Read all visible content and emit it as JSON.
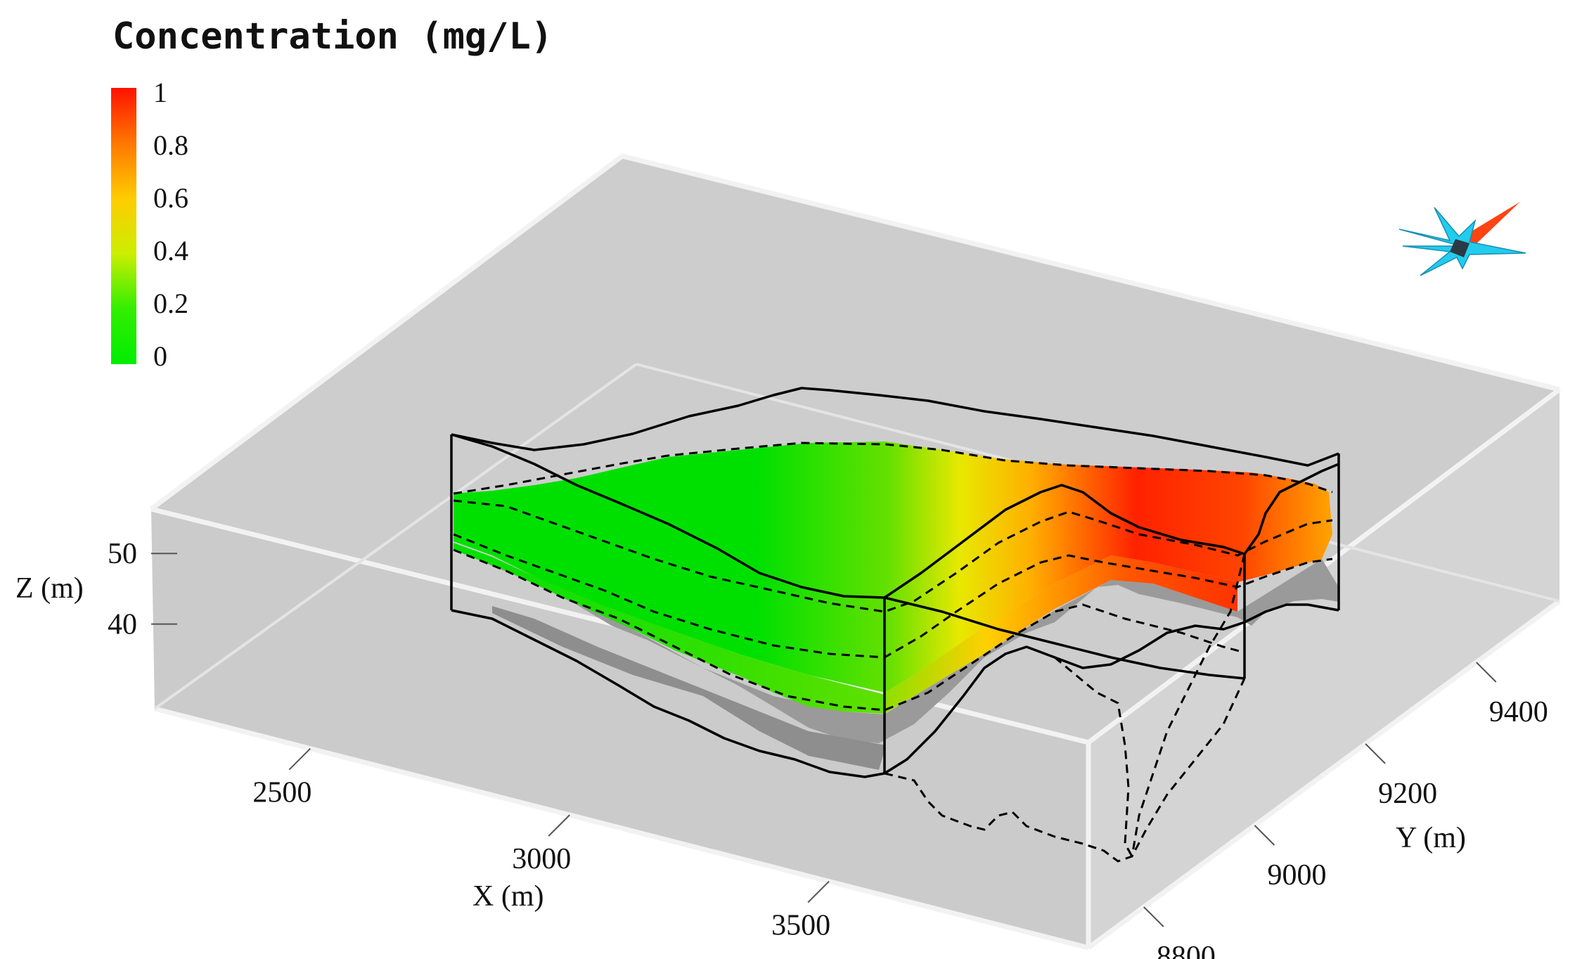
{
  "chart_data": {
    "type": "3d-plume",
    "legend": {
      "title": "Concentration (mg/L)",
      "ticks": [
        "1",
        "0.8",
        "0.6",
        "0.4",
        "0.2",
        "0"
      ],
      "range": [
        0,
        1
      ],
      "colormap": [
        {
          "value": 0.0,
          "color": "#00ee00"
        },
        {
          "value": 0.2,
          "color": "#33ee00"
        },
        {
          "value": 0.4,
          "color": "#ccee00"
        },
        {
          "value": 0.6,
          "color": "#ffcc00"
        },
        {
          "value": 0.8,
          "color": "#ff7700"
        },
        {
          "value": 1.0,
          "color": "#ff1100"
        }
      ]
    },
    "axes": {
      "x": {
        "label": "X (m)",
        "ticks": [
          "2500",
          "3000",
          "3500"
        ],
        "range": [
          2200,
          4000
        ]
      },
      "y": {
        "label": "Y (m)",
        "ticks": [
          "8800",
          "9000",
          "9200",
          "9400"
        ],
        "range": [
          8700,
          9550
        ]
      },
      "z": {
        "label": "Z (m)",
        "ticks": [
          "50",
          "40"
        ],
        "range": [
          28,
          56
        ]
      }
    },
    "colors": {
      "box_fill": "#cfcfcf",
      "box_edge": "#f0f0f0",
      "aquifer_base": "#9a9a9a",
      "compass_cyan": "#22ccee",
      "compass_red": "#ff4411"
    }
  }
}
